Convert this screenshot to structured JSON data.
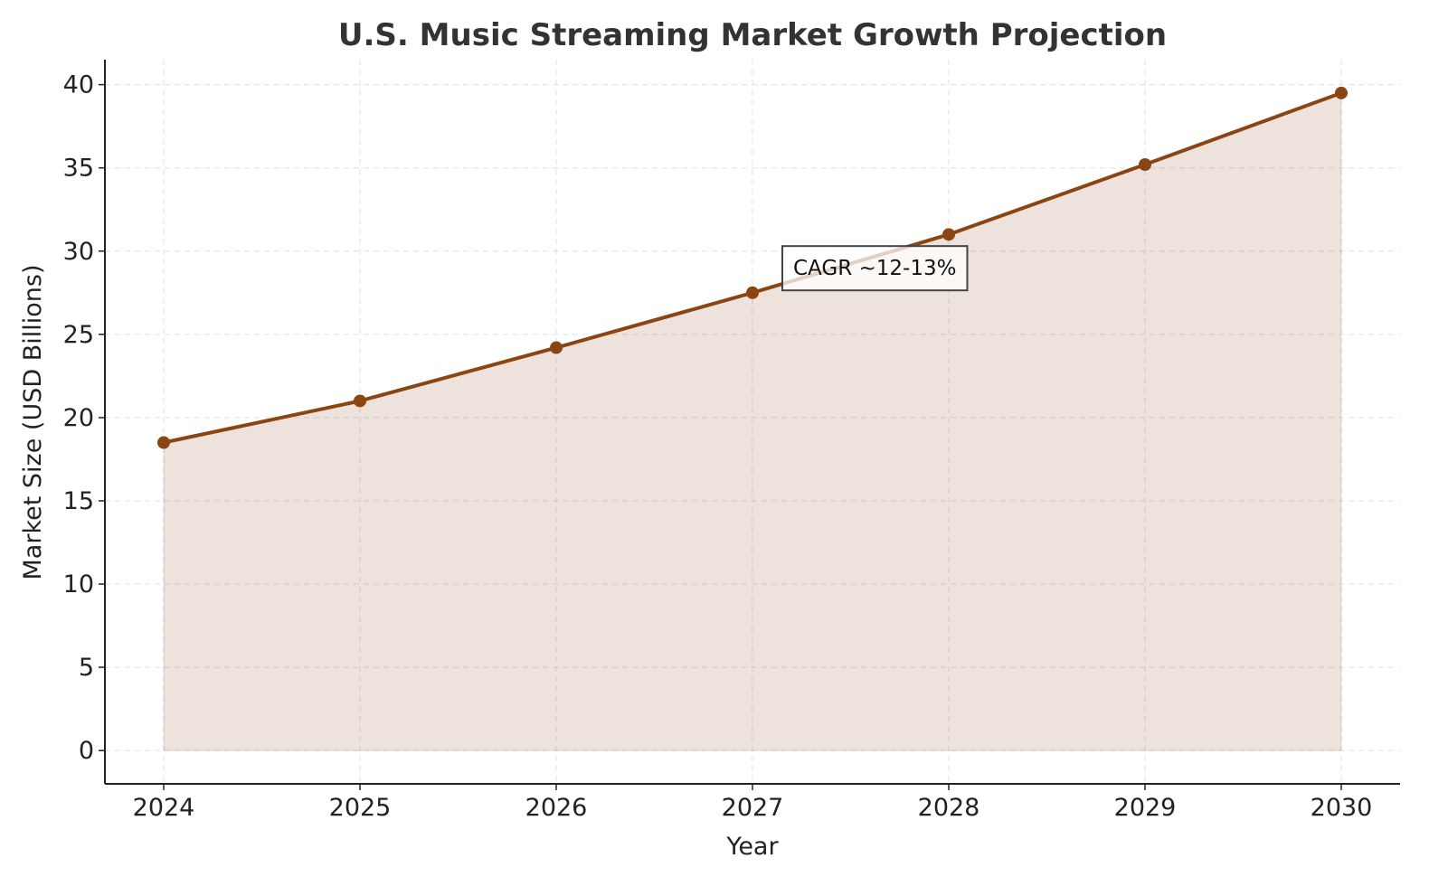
{
  "chart_data": {
    "type": "area",
    "title": "U.S. Music Streaming Market Growth Projection",
    "xlabel": "Year",
    "ylabel": "Market Size (USD Billions)",
    "x": [
      "2024",
      "2025",
      "2026",
      "2027",
      "2028",
      "2029",
      "2030"
    ],
    "series": [
      {
        "values": [
          18.5,
          21.0,
          24.2,
          27.5,
          31.0,
          35.2,
          39.5
        ]
      }
    ],
    "ylim": [
      -2,
      41.5
    ],
    "yticks": [
      "0",
      "5",
      "10",
      "15",
      "20",
      "25",
      "30",
      "35",
      "40"
    ],
    "grid": true,
    "annotation": {
      "text": "CAGR ~12-13%",
      "x": "2027",
      "y": 29
    },
    "colors": {
      "line": "#8B4513",
      "fill": "#8B4513",
      "fill_opacity": 0.15
    }
  }
}
